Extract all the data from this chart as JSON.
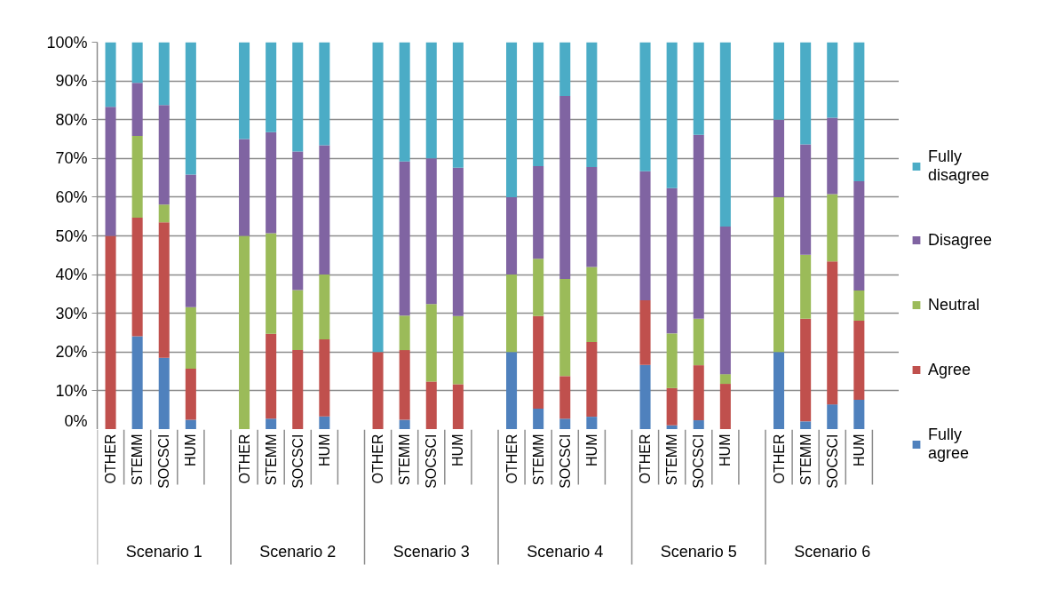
{
  "chart_data": {
    "type": "bar",
    "stacked": true,
    "categories": [
      "OTHER",
      "STEMM",
      "SOCSCI",
      "HUM",
      null,
      "OTHER",
      "STEMM",
      "SOCSCI",
      "HUM",
      null,
      "OTHER",
      "STEMM",
      "SOCSCI",
      "HUM",
      null,
      "OTHER",
      "STEMM",
      "SOCSCI",
      "HUM",
      null,
      "OTHER",
      "STEMM",
      "SOCSCI",
      "HUM",
      null,
      "OTHER",
      "STEMM",
      "SOCSCI",
      "HUM",
      null
    ],
    "series": [
      {
        "name": "Fully agree",
        "color": "#4f81bd",
        "values": [
          0,
          24.1,
          18.5,
          2.5,
          null,
          0,
          2.8,
          0,
          3.4,
          null,
          0,
          2.5,
          0,
          0,
          null,
          20,
          5.4,
          2.8,
          3.3,
          null,
          16.7,
          1.1,
          2.4,
          0,
          null,
          20,
          2.1,
          6.5,
          7.7,
          null
        ]
      },
      {
        "name": "Agree",
        "color": "#c0504d",
        "values": [
          50,
          30.6,
          35,
          13.2,
          null,
          0,
          21.9,
          20.5,
          19.9,
          null,
          20,
          18,
          12.4,
          11.7,
          null,
          0,
          23.9,
          11,
          19.3,
          null,
          16.7,
          9.6,
          14.2,
          11.8,
          null,
          0,
          26.5,
          36.9,
          20.4,
          null
        ]
      },
      {
        "name": "Neutral",
        "color": "#9bbb59",
        "values": [
          0,
          21.1,
          4.6,
          15.9,
          null,
          50,
          26,
          15.5,
          16.7,
          null,
          0,
          8.9,
          20,
          17.6,
          null,
          20,
          14.8,
          25.1,
          19.4,
          null,
          0,
          14.1,
          12,
          2.5,
          null,
          40,
          16.5,
          17.4,
          7.8,
          null
        ]
      },
      {
        "name": "Disagree",
        "color": "#8064a2",
        "values": [
          33.3,
          13.7,
          25.7,
          34.2,
          null,
          25,
          26.1,
          35.8,
          33.4,
          null,
          0,
          39.8,
          37.6,
          38.3,
          null,
          20,
          23.9,
          47.2,
          25.8,
          null,
          33.3,
          37.5,
          47.5,
          38.1,
          null,
          20,
          28.5,
          19.7,
          28.2,
          null
        ]
      },
      {
        "name": "Fully disagree",
        "color": "#4bacc6",
        "values": [
          16.7,
          10.5,
          16.2,
          34.2,
          null,
          25,
          23.2,
          28.2,
          26.6,
          null,
          80,
          30.8,
          30,
          32.4,
          null,
          40,
          32,
          13.9,
          32.2,
          null,
          33.3,
          37.7,
          23.9,
          47.6,
          null,
          20,
          26.4,
          19.5,
          35.9,
          null
        ]
      }
    ],
    "ylim": [
      0,
      100
    ],
    "yticks": [
      {
        "value": 0,
        "label": "0%"
      },
      {
        "value": 10,
        "label": "10%"
      },
      {
        "value": 20,
        "label": "20%"
      },
      {
        "value": 30,
        "label": "30%"
      },
      {
        "value": 40,
        "label": "40%"
      },
      {
        "value": 50,
        "label": "50%"
      },
      {
        "value": 60,
        "label": "60%"
      },
      {
        "value": 70,
        "label": "70%"
      },
      {
        "value": 80,
        "label": "80%"
      },
      {
        "value": 90,
        "label": "90%"
      },
      {
        "value": 100,
        "label": "100%"
      }
    ],
    "grid": "y",
    "legend": "right",
    "annotations": [
      "Scenario 1",
      "Scenario 2",
      "Scenario 3",
      "Scenario 4",
      "Scenario 5",
      "Scenario 6"
    ]
  }
}
